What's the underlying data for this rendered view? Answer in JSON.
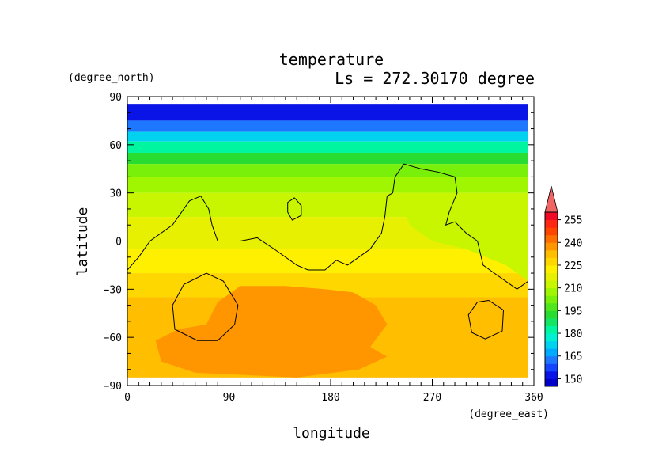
{
  "chart_data": {
    "type": "heatmap",
    "title": "temperature",
    "subtitle": "Ls = 272.30170 degree",
    "xlabel": "longitude",
    "ylabel": "latitude",
    "xunits": "(degree_east)",
    "yunits": "(degree_north)",
    "xlim": [
      0,
      360
    ],
    "ylim": [
      -90,
      90
    ],
    "xticks": [
      0,
      90,
      180,
      270,
      360
    ],
    "yticks": [
      90,
      60,
      30,
      0,
      -30,
      -60,
      -90
    ],
    "grid": false,
    "colorbar": {
      "labels": [
        255,
        240,
        225,
        210,
        195,
        180,
        165,
        150
      ],
      "levels": [
        145,
        150,
        155,
        160,
        165,
        170,
        175,
        180,
        185,
        190,
        195,
        200,
        205,
        210,
        215,
        220,
        225,
        230,
        235,
        240,
        245,
        250,
        255,
        260
      ],
      "colors": [
        "#0000c8",
        "#0a14e6",
        "#1446ff",
        "#1e78ff",
        "#00aaff",
        "#00d2f0",
        "#00f0d2",
        "#00f5a0",
        "#14e664",
        "#28dc32",
        "#50e61e",
        "#78f00a",
        "#a0f500",
        "#c8f500",
        "#e6f000",
        "#fff000",
        "#ffd700",
        "#ffbe00",
        "#ff9600",
        "#ff6e00",
        "#ff4600",
        "#ff2814",
        "#f00a28"
      ],
      "overflow_color": "#f06464"
    },
    "bands": [
      {
        "value": 150,
        "lat_min": 75,
        "lat_max": 85
      },
      {
        "value": 160,
        "lat_min": 68,
        "lat_max": 75
      },
      {
        "value": 170,
        "lat_min": 62,
        "lat_max": 68
      },
      {
        "value": 180,
        "lat_min": 55,
        "lat_max": 62
      },
      {
        "value": 190,
        "lat_min": 48,
        "lat_max": 55
      },
      {
        "value": 200,
        "lat_min": 40,
        "lat_max": 48
      },
      {
        "value": 207,
        "lat_min": 30,
        "lat_max": 40
      },
      {
        "value": 212,
        "lat_min": 15,
        "lat_max": 30
      },
      {
        "value": 217,
        "lat_min": -5,
        "lat_max": 15
      },
      {
        "value": 222,
        "lat_min": -20,
        "lat_max": -5
      },
      {
        "value": 227,
        "lat_min": -35,
        "lat_max": -20
      },
      {
        "value": 232,
        "lat_min": -85,
        "lat_max": -35
      }
    ],
    "regions": [
      {
        "value": 238,
        "points": [
          [
            25,
            -62
          ],
          [
            45,
            -55
          ],
          [
            70,
            -52
          ],
          [
            80,
            -38
          ],
          [
            100,
            -28
          ],
          [
            140,
            -28
          ],
          [
            175,
            -30
          ],
          [
            200,
            -32
          ],
          [
            220,
            -40
          ],
          [
            230,
            -52
          ],
          [
            215,
            -66
          ],
          [
            230,
            -72
          ],
          [
            205,
            -80
          ],
          [
            150,
            -85
          ],
          [
            60,
            -82
          ],
          [
            30,
            -75
          ]
        ]
      },
      {
        "value": 210,
        "points": [
          [
            240,
            30
          ],
          [
            250,
            10
          ],
          [
            270,
            0
          ],
          [
            300,
            -5
          ],
          [
            335,
            -15
          ],
          [
            355,
            -25
          ],
          [
            355,
            20
          ],
          [
            320,
            25
          ],
          [
            290,
            30
          ]
        ]
      }
    ],
    "contours": [
      [
        [
          0,
          -18
        ],
        [
          10,
          -10
        ],
        [
          20,
          0
        ],
        [
          40,
          10
        ],
        [
          55,
          25
        ],
        [
          65,
          28
        ],
        [
          72,
          20
        ],
        [
          75,
          10
        ],
        [
          80,
          0
        ],
        [
          100,
          0
        ],
        [
          115,
          2
        ],
        [
          130,
          -5
        ],
        [
          150,
          -15
        ],
        [
          160,
          -18
        ],
        [
          175,
          -18
        ],
        [
          185,
          -12
        ],
        [
          195,
          -15
        ],
        [
          205,
          -10
        ],
        [
          215,
          -5
        ],
        [
          225,
          5
        ],
        [
          228,
          15
        ],
        [
          230,
          28
        ],
        [
          235,
          30
        ],
        [
          237,
          40
        ],
        [
          245,
          48
        ],
        [
          260,
          45
        ],
        [
          275,
          43
        ],
        [
          290,
          40
        ],
        [
          292,
          30
        ],
        [
          285,
          18
        ],
        [
          282,
          10
        ],
        [
          290,
          12
        ],
        [
          300,
          5
        ],
        [
          310,
          0
        ],
        [
          315,
          -15
        ],
        [
          325,
          -20
        ],
        [
          335,
          -25
        ],
        [
          345,
          -30
        ],
        [
          355,
          -25
        ],
        [
          360,
          -20
        ]
      ],
      [
        [
          148,
          27
        ],
        [
          154,
          22
        ],
        [
          154,
          16
        ],
        [
          146,
          13
        ],
        [
          142,
          18
        ],
        [
          142,
          24
        ],
        [
          148,
          27
        ]
      ],
      [
        [
          70,
          -20
        ],
        [
          85,
          -25
        ],
        [
          98,
          -40
        ],
        [
          95,
          -52
        ],
        [
          80,
          -62
        ],
        [
          62,
          -62
        ],
        [
          42,
          -55
        ],
        [
          40,
          -40
        ],
        [
          50,
          -27
        ],
        [
          70,
          -20
        ]
      ],
      [
        [
          320,
          -37
        ],
        [
          333,
          -43
        ],
        [
          332,
          -56
        ],
        [
          317,
          -61
        ],
        [
          305,
          -57
        ],
        [
          302,
          -46
        ],
        [
          310,
          -38
        ],
        [
          320,
          -37
        ]
      ]
    ]
  }
}
